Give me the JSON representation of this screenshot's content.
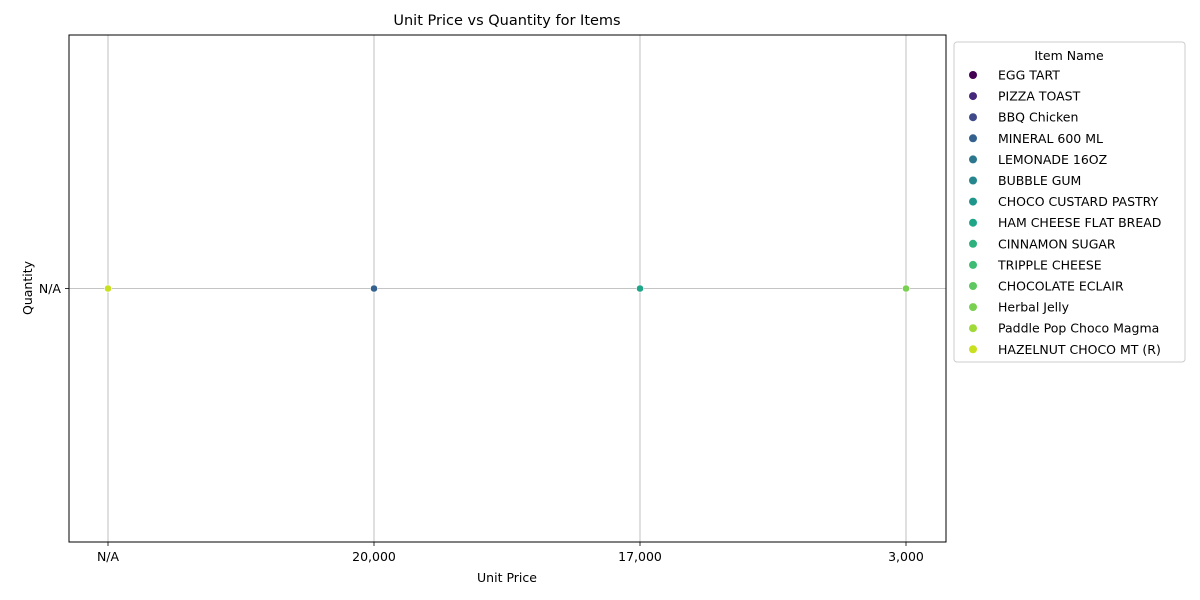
{
  "chart_data": {
    "type": "scatter",
    "title": "Unit Price vs Quantity for Items",
    "xlabel": "Unit Price",
    "ylabel": "Quantity",
    "x_categories": [
      "N/A",
      "20,000",
      "17,000",
      "3,000"
    ],
    "y_categories": [
      "N/A"
    ],
    "grid": true,
    "legend": {
      "title": "Item Name",
      "placement": "outside-right",
      "entries": [
        {
          "name": "EGG TART",
          "color": "#440154"
        },
        {
          "name": "PIZZA TOAST",
          "color": "#46287a"
        },
        {
          "name": "BBQ Chicken",
          "color": "#3f4a8a"
        },
        {
          "name": "MINERAL 600 ML",
          "color": "#34618d"
        },
        {
          "name": "LEMONADE 16OZ",
          "color": "#2c778e"
        },
        {
          "name": "BUBBLE GUM",
          "color": "#25868e"
        },
        {
          "name": "CHOCO CUSTARD PASTRY",
          "color": "#1f968b"
        },
        {
          "name": "HAM CHEESE FLAT BREAD",
          "color": "#1fa688"
        },
        {
          "name": "CINNAMON SUGAR",
          "color": "#2db27d"
        },
        {
          "name": "TRIPPLE CHEESE",
          "color": "#3fbc73"
        },
        {
          "name": "CHOCOLATE ECLAIR",
          "color": "#5ec962"
        },
        {
          "name": "Herbal Jelly",
          "color": "#7ad151"
        },
        {
          "name": "Paddle Pop Choco Magma",
          "color": "#a0da39"
        },
        {
          "name": "HAZELNUT CHOCO MT (R)",
          "color": "#c8e020"
        }
      ]
    },
    "points": [
      {
        "x": "N/A",
        "y": "N/A",
        "color": "#c8e020"
      },
      {
        "x": "20,000",
        "y": "N/A",
        "color": "#34618d"
      },
      {
        "x": "17,000",
        "y": "N/A",
        "color": "#1fa688"
      },
      {
        "x": "3,000",
        "y": "N/A",
        "color": "#7ad151"
      }
    ]
  }
}
